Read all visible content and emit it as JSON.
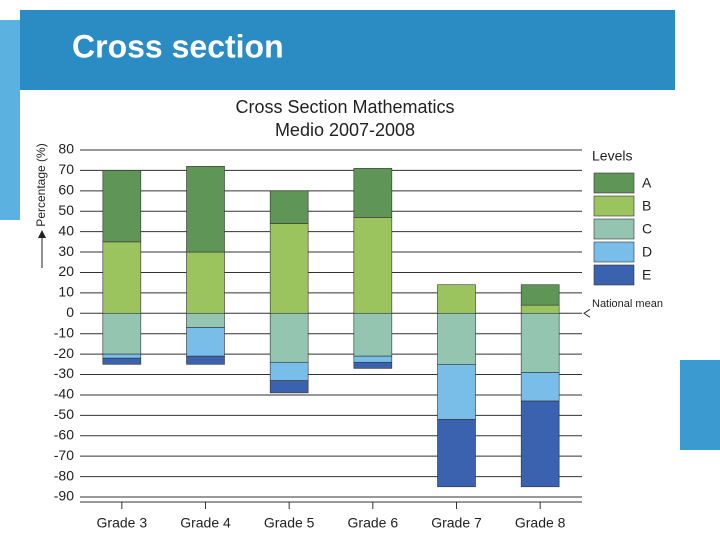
{
  "header": {
    "title": "Cross section"
  },
  "chart_data": {
    "type": "bar",
    "stacked": true,
    "title": "Cross Section Mathematics",
    "subtitle": "Medio 2007-2008",
    "y_label": "Percentage (%)",
    "categories": [
      "Grade 3",
      "Grade 4",
      "Grade 5",
      "Grade 6",
      "Grade 7",
      "Grade 8"
    ],
    "legend_title": "Levels",
    "series": [
      {
        "name": "A",
        "color": "#5f9556",
        "values": [
          35,
          42,
          16,
          24,
          0,
          10
        ]
      },
      {
        "name": "B",
        "color": "#9bc45f",
        "values": [
          35,
          30,
          44,
          47,
          14,
          4
        ]
      },
      {
        "name": "C",
        "color": "#93c5b0",
        "values": [
          -20,
          -7,
          -24,
          -21,
          -25,
          -29
        ]
      },
      {
        "name": "D",
        "color": "#79bde9",
        "values": [
          -2,
          -14,
          -9,
          -3,
          -27,
          -14
        ]
      },
      {
        "name": "E",
        "color": "#3a62ae",
        "values": [
          -3,
          -4,
          -6,
          -3,
          -33,
          -42
        ]
      }
    ],
    "annotation": "National mean",
    "ylim": [
      -90,
      80
    ],
    "yticks": [
      80,
      70,
      60,
      50,
      40,
      30,
      20,
      10,
      0,
      -10,
      -20,
      -30,
      -40,
      -50,
      -60,
      -70,
      -80,
      -90
    ],
    "grid": true,
    "legend": "right"
  }
}
